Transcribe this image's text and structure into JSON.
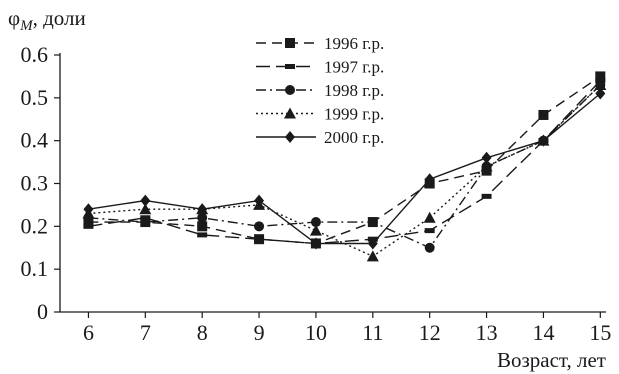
{
  "chart_data": {
    "type": "line",
    "ylabel_main": "φ",
    "ylabel_sub": "M",
    "ylabel_rest": ", доли",
    "xlabel": "Возраст, лет",
    "x": [
      6,
      7,
      8,
      9,
      10,
      11,
      12,
      13,
      14,
      15
    ],
    "xlim": [
      5.5,
      15.1
    ],
    "ylim": [
      0,
      0.6
    ],
    "yticks": [
      0,
      0.1,
      0.2,
      0.3,
      0.4,
      0.5,
      0.6
    ],
    "ytick_labels": [
      "0",
      "0.1",
      "0.2",
      "0.3",
      "0.4",
      "0.5",
      "0.6"
    ],
    "grid": false,
    "legend_position": "top-center",
    "series": [
      {
        "name": "1996 г.р.",
        "marker": "square",
        "dash": "dashed",
        "values": [
          0.21,
          0.21,
          0.2,
          0.17,
          0.16,
          0.21,
          0.3,
          0.33,
          0.46,
          0.55
        ]
      },
      {
        "name": "1997 г.р.",
        "marker": "rect-small",
        "dash": "long-dashed",
        "values": [
          0.2,
          0.22,
          0.18,
          0.17,
          0.16,
          0.17,
          0.19,
          0.27,
          0.4,
          0.54
        ]
      },
      {
        "name": "1998 г.р.",
        "marker": "circle",
        "dash": "dash-dot",
        "values": [
          0.22,
          0.21,
          0.22,
          0.2,
          0.21,
          0.21,
          0.15,
          0.34,
          0.4,
          0.53
        ]
      },
      {
        "name": "1999 г.р.",
        "marker": "triangle",
        "dash": "dotted",
        "values": [
          0.23,
          0.24,
          0.24,
          0.25,
          0.19,
          0.13,
          0.22,
          0.34,
          0.4,
          0.53
        ]
      },
      {
        "name": "2000 г.р.",
        "marker": "diamond",
        "dash": "solid",
        "values": [
          0.24,
          0.26,
          0.24,
          0.26,
          0.16,
          0.16,
          0.31,
          0.36,
          0.4,
          0.51
        ]
      }
    ]
  }
}
